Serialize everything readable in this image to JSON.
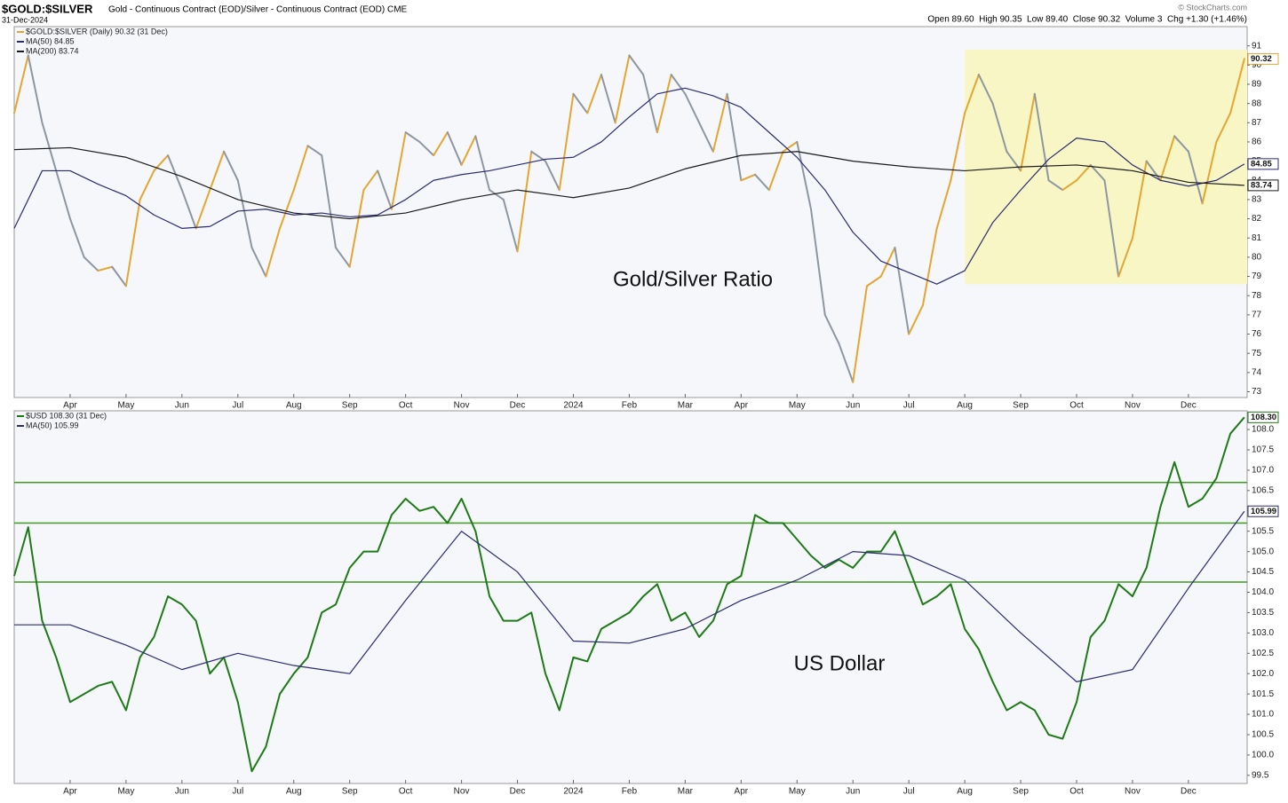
{
  "header": {
    "symbol": "$GOLD:$SILVER",
    "description": "Gold - Continuous Contract (EOD)/Silver - Continuous Contract (EOD) CME",
    "date": "31-Dec-2024",
    "copyright": "© StockCharts.com",
    "quote": "Open 89.60  High 90.35  Low 89.40  Close 90.32  Volume 3  Chg +1.30 (+1.46%)"
  },
  "chart_data": [
    {
      "type": "line",
      "annotation": "Gold/Silver Ratio",
      "xlim": [
        0,
        22.05
      ],
      "ylim": [
        72.7,
        92.0
      ],
      "yticks": [
        73,
        74,
        75,
        76,
        77,
        78,
        79,
        80,
        81,
        82,
        83,
        84,
        85,
        86,
        87,
        88,
        89,
        90,
        91
      ],
      "xticks": [
        {
          "value": 1,
          "label": "Apr"
        },
        {
          "value": 2,
          "label": "May"
        },
        {
          "value": 3,
          "label": "Jun"
        },
        {
          "value": 4,
          "label": "Jul"
        },
        {
          "value": 5,
          "label": "Aug"
        },
        {
          "value": 6,
          "label": "Sep"
        },
        {
          "value": 7,
          "label": "Oct"
        },
        {
          "value": 8,
          "label": "Nov"
        },
        {
          "value": 9,
          "label": "Dec"
        },
        {
          "value": 10,
          "label": "2024"
        },
        {
          "value": 11,
          "label": "Feb"
        },
        {
          "value": 12,
          "label": "Mar"
        },
        {
          "value": 13,
          "label": "Apr"
        },
        {
          "value": 14,
          "label": "May"
        },
        {
          "value": 15,
          "label": "Jun"
        },
        {
          "value": 16,
          "label": "Jul"
        },
        {
          "value": 17,
          "label": "Aug"
        },
        {
          "value": 18,
          "label": "Sep"
        },
        {
          "value": 19,
          "label": "Oct"
        },
        {
          "value": 20,
          "label": "Nov"
        },
        {
          "value": 21,
          "label": "Dec"
        }
      ],
      "highlight": {
        "xlim": [
          17,
          22.05
        ],
        "ylim": [
          78.6,
          90.8
        ],
        "color": "#f8f6c4"
      },
      "series": [
        {
          "name": "$GOLD:$SILVER (Daily) 90.32 (31 Dec)",
          "style": "updown",
          "color_up": "#e5a531",
          "color_down": "#8d97a1",
          "last_label": "90.32",
          "x": [
            0,
            0.25,
            0.5,
            0.75,
            1,
            1.25,
            1.5,
            1.75,
            2,
            2.25,
            2.5,
            2.75,
            3,
            3.25,
            3.5,
            3.75,
            4,
            4.25,
            4.5,
            4.75,
            5,
            5.25,
            5.5,
            5.75,
            6,
            6.25,
            6.5,
            6.75,
            7,
            7.25,
            7.5,
            7.75,
            8,
            8.25,
            8.5,
            8.75,
            9,
            9.25,
            9.5,
            9.75,
            10,
            10.25,
            10.5,
            10.75,
            11,
            11.25,
            11.5,
            11.75,
            12,
            12.25,
            12.5,
            12.75,
            13,
            13.25,
            13.5,
            13.75,
            14,
            14.25,
            14.5,
            14.75,
            15,
            15.25,
            15.5,
            15.75,
            16,
            16.25,
            16.5,
            16.75,
            17,
            17.25,
            17.5,
            17.75,
            18,
            18.25,
            18.5,
            18.75,
            19,
            19.25,
            19.5,
            19.75,
            20,
            20.25,
            20.5,
            20.75,
            21,
            21.25,
            21.5,
            21.75,
            22
          ],
          "values": [
            87.5,
            90.5,
            87,
            84.5,
            82,
            80,
            79.3,
            79.5,
            78.5,
            83,
            84.5,
            85.3,
            83.5,
            81.5,
            83.5,
            85.5,
            84,
            80.5,
            79,
            81.5,
            83.5,
            85.8,
            85.3,
            80.5,
            79.5,
            83.5,
            84.5,
            82.5,
            86.5,
            86,
            85.3,
            86.5,
            84.8,
            86.3,
            83.5,
            83,
            80.3,
            85.5,
            85,
            83.5,
            88.5,
            87.5,
            89.5,
            87,
            90.5,
            89.5,
            86.5,
            89.5,
            88.5,
            87,
            85.5,
            88.5,
            84,
            84.3,
            83.5,
            85.5,
            86,
            82.5,
            77,
            75.5,
            73.5,
            78.5,
            79,
            80.5,
            76,
            77.5,
            81.5,
            84,
            87.5,
            89.5,
            88,
            85.5,
            84.5,
            88.5,
            84,
            83.5,
            84,
            84.8,
            84,
            79,
            81,
            85,
            84,
            86.3,
            85.5,
            82.8,
            86,
            87.5,
            90.32
          ]
        },
        {
          "name": "MA(50) 84.85",
          "color": "#2b2b72",
          "last_label": "84.85",
          "x": [
            0,
            0.5,
            1,
            1.5,
            2,
            2.5,
            3,
            3.5,
            4,
            4.5,
            5,
            5.5,
            6,
            6.5,
            7,
            7.5,
            8,
            8.5,
            9,
            9.5,
            10,
            10.5,
            11,
            11.5,
            12,
            12.5,
            13,
            13.5,
            14,
            14.5,
            15,
            15.5,
            16,
            16.5,
            17,
            17.5,
            18,
            18.5,
            19,
            19.5,
            20,
            20.5,
            21,
            21.5,
            22
          ],
          "values": [
            81.5,
            84.5,
            84.5,
            83.8,
            83.2,
            82.2,
            81.5,
            81.6,
            82.4,
            82.5,
            82.2,
            82.3,
            82.1,
            82.2,
            83,
            84,
            84.3,
            84.5,
            84.8,
            85.1,
            85.2,
            86,
            87.3,
            88.5,
            88.8,
            88.4,
            87.8,
            86.5,
            85.2,
            83.5,
            81.3,
            79.8,
            79.2,
            78.6,
            79.3,
            81.8,
            83.5,
            85.1,
            86.2,
            86,
            84.8,
            84,
            83.7,
            84,
            84.85
          ]
        },
        {
          "name": "MA(200) 83.74",
          "color": "#1a1a1a",
          "last_label": "83.74",
          "x": [
            0,
            1,
            2,
            3,
            4,
            5,
            6,
            7,
            8,
            9,
            10,
            11,
            12,
            13,
            14,
            15,
            16,
            17,
            18,
            19,
            20,
            21,
            22
          ],
          "values": [
            85.6,
            85.7,
            85.2,
            84.2,
            83,
            82.3,
            82,
            82.3,
            83,
            83.5,
            83.1,
            83.6,
            84.6,
            85.3,
            85.5,
            85,
            84.7,
            84.5,
            84.7,
            84.8,
            84.5,
            83.9,
            83.74
          ]
        }
      ]
    },
    {
      "type": "line",
      "annotation": "US Dollar",
      "xlim": [
        0,
        22.05
      ],
      "ylim": [
        99.3,
        108.46
      ],
      "yticks": [
        99.5,
        {
          "value": 100,
          "label": "100.0"
        },
        100.5,
        {
          "value": 101,
          "label": "101.0"
        },
        101.5,
        {
          "value": 102,
          "label": "102.0"
        },
        102.5,
        {
          "value": 103,
          "label": "103.0"
        },
        103.5,
        {
          "value": 104,
          "label": "104.0"
        },
        104.5,
        {
          "value": 105,
          "label": "105.0"
        },
        105.5,
        {
          "value": 106,
          "label": "106.0"
        },
        106.5,
        {
          "value": 107,
          "label": "107.0"
        },
        107.5,
        {
          "value": 108,
          "label": "108.0"
        }
      ],
      "xticks": [
        {
          "value": 1,
          "label": "Apr"
        },
        {
          "value": 2,
          "label": "May"
        },
        {
          "value": 3,
          "label": "Jun"
        },
        {
          "value": 4,
          "label": "Jul"
        },
        {
          "value": 5,
          "label": "Aug"
        },
        {
          "value": 6,
          "label": "Sep"
        },
        {
          "value": 7,
          "label": "Oct"
        },
        {
          "value": 8,
          "label": "Nov"
        },
        {
          "value": 9,
          "label": "Dec"
        },
        {
          "value": 10,
          "label": "2024"
        },
        {
          "value": 11,
          "label": "Feb"
        },
        {
          "value": 12,
          "label": "Mar"
        },
        {
          "value": 13,
          "label": "Apr"
        },
        {
          "value": 14,
          "label": "May"
        },
        {
          "value": 15,
          "label": "Jun"
        },
        {
          "value": 16,
          "label": "Jul"
        },
        {
          "value": 17,
          "label": "Aug"
        },
        {
          "value": 18,
          "label": "Sep"
        },
        {
          "value": 19,
          "label": "Oct"
        },
        {
          "value": 20,
          "label": "Nov"
        },
        {
          "value": 21,
          "label": "Dec"
        }
      ],
      "levels": [
        106.7,
        105.7,
        104.25
      ],
      "level_color": "#3f9a22",
      "series": [
        {
          "name": "$USD 108.30 (31 Dec)",
          "color": "#1e7a16",
          "width": 2,
          "last_label": "108.30",
          "x": [
            0,
            0.25,
            0.5,
            0.75,
            1,
            1.25,
            1.5,
            1.75,
            2,
            2.25,
            2.5,
            2.75,
            3,
            3.25,
            3.5,
            3.75,
            4,
            4.25,
            4.5,
            4.75,
            5,
            5.25,
            5.5,
            5.75,
            6,
            6.25,
            6.5,
            6.75,
            7,
            7.25,
            7.5,
            7.75,
            8,
            8.25,
            8.5,
            8.75,
            9,
            9.25,
            9.5,
            9.75,
            10,
            10.25,
            10.5,
            10.75,
            11,
            11.25,
            11.5,
            11.75,
            12,
            12.25,
            12.5,
            12.75,
            13,
            13.25,
            13.5,
            13.75,
            14,
            14.25,
            14.5,
            14.75,
            15,
            15.25,
            15.5,
            15.75,
            16,
            16.25,
            16.5,
            16.75,
            17,
            17.25,
            17.5,
            17.75,
            18,
            18.25,
            18.5,
            18.75,
            19,
            19.25,
            19.5,
            19.75,
            20,
            20.25,
            20.5,
            20.75,
            21,
            21.25,
            21.5,
            21.75,
            22
          ],
          "values": [
            104.4,
            105.6,
            103.3,
            102.4,
            101.3,
            101.5,
            101.7,
            101.8,
            101.1,
            102.4,
            102.9,
            103.9,
            103.7,
            103.3,
            102.0,
            102.4,
            101.3,
            99.6,
            100.2,
            101.5,
            102.0,
            102.4,
            103.5,
            103.7,
            104.6,
            105.0,
            105.0,
            105.9,
            106.3,
            106.0,
            106.1,
            105.7,
            106.3,
            105.5,
            103.9,
            103.3,
            103.3,
            103.5,
            102.0,
            101.1,
            102.4,
            102.3,
            103.1,
            103.3,
            103.5,
            103.9,
            104.2,
            103.3,
            103.5,
            102.9,
            103.3,
            104.2,
            104.4,
            105.9,
            105.7,
            105.7,
            105.3,
            104.9,
            104.6,
            104.8,
            104.6,
            105.0,
            105.0,
            105.5,
            104.6,
            103.7,
            103.9,
            104.2,
            103.1,
            102.6,
            101.8,
            101.1,
            101.3,
            101.1,
            100.5,
            100.4,
            101.3,
            102.9,
            103.3,
            104.2,
            103.9,
            104.6,
            106.1,
            107.2,
            106.1,
            106.3,
            106.8,
            107.9,
            108.3
          ]
        },
        {
          "name": "MA(50) 105.99",
          "color": "#2b2b72",
          "last_label": "105.99",
          "x": [
            0,
            1,
            2,
            3,
            4,
            5,
            6,
            7,
            8,
            9,
            10,
            11,
            12,
            13,
            14,
            15,
            16,
            17,
            18,
            19,
            20,
            21,
            22
          ],
          "values": [
            103.2,
            103.2,
            102.7,
            102.1,
            102.5,
            102.2,
            102.0,
            103.8,
            105.5,
            104.5,
            102.8,
            102.75,
            103.1,
            103.8,
            104.3,
            105.0,
            104.9,
            104.3,
            103.0,
            101.8,
            102.1,
            104.1,
            105.99
          ]
        }
      ]
    }
  ]
}
